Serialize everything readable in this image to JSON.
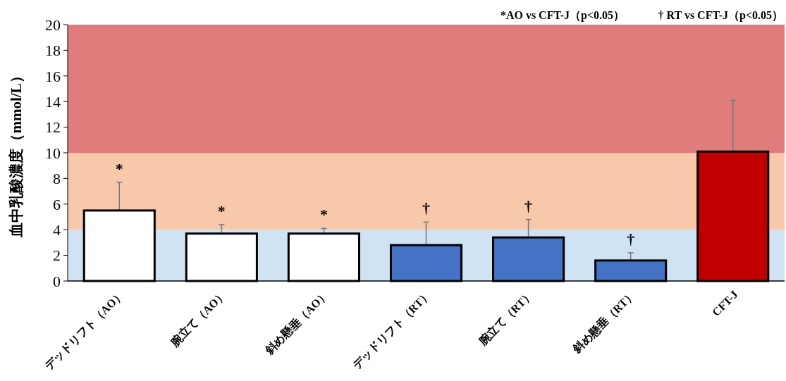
{
  "chart_data": {
    "type": "bar",
    "ylabel": "血中乳酸濃度（mmol/L）",
    "categories": [
      "デッドリフト（AO）",
      "腕立て（AO）",
      "斜め懸垂（AO）",
      "デッドリフト（RT）",
      "腕立て（RT）",
      "斜め懸垂（RT）",
      "CFT-J"
    ],
    "values": [
      5.5,
      3.7,
      3.7,
      2.8,
      3.4,
      1.6,
      10.1
    ],
    "colors": [
      "#ffffff",
      "#ffffff",
      "#ffffff",
      "#4472c4",
      "#4472c4",
      "#4472c4",
      "#c00000"
    ],
    "errors": [
      [
        5.5,
        7.7
      ],
      [
        3.7,
        4.4
      ],
      [
        3.7,
        4.1
      ],
      [
        2.8,
        4.6
      ],
      [
        3.4,
        4.8
      ],
      [
        1.6,
        2.2
      ],
      [
        10.1,
        14.1
      ]
    ],
    "ylim": [
      0,
      20
    ],
    "yticks": [
      0,
      2,
      4,
      6,
      8,
      10,
      12,
      14,
      16,
      18,
      20
    ],
    "bands": [
      {
        "axis": "y",
        "from": 0,
        "to": 4,
        "color": "#d0e3f3"
      },
      {
        "axis": "y",
        "from": 4,
        "to": 10,
        "color": "#f7c8aa"
      },
      {
        "axis": "y",
        "from": 10,
        "to": 20,
        "color": "#e07c7c"
      }
    ],
    "annotations": [
      "*AO vs CFT-J（p<0.05）",
      "† RT vs CFT-J（p<0.05）",
      "*",
      "*",
      "*",
      "†",
      "†",
      "†"
    ],
    "grid": false
  }
}
